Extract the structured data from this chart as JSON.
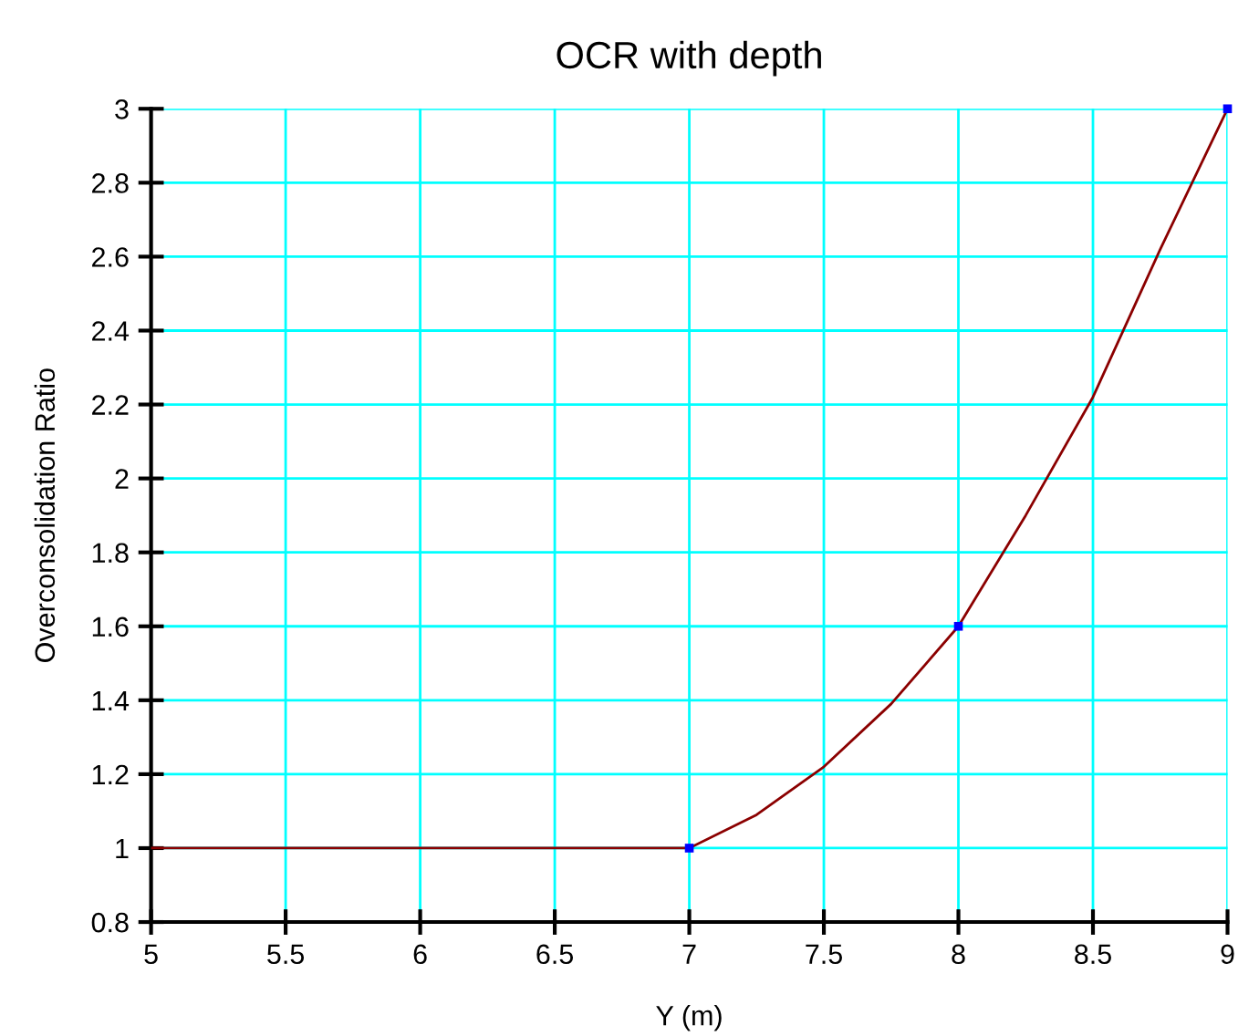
{
  "chart_data": {
    "type": "line",
    "title": "OCR with depth",
    "xlabel": "Y (m)",
    "ylabel": "Overconsolidation Ratio",
    "xlim": [
      5,
      9
    ],
    "xticks": [
      5,
      5.5,
      6,
      6.5,
      7,
      7.5,
      8,
      8.5,
      9
    ],
    "ylim": [
      0.8,
      3
    ],
    "yticks": [
      0.8,
      1,
      1.2,
      1.4,
      1.6,
      1.8,
      2,
      2.2,
      2.4,
      2.6,
      2.8,
      3
    ],
    "grid": true,
    "marker": "none",
    "series": [
      {
        "color": "#8b0000",
        "x": [
          5,
          7,
          7.25,
          7.5,
          7.75,
          8,
          8.25,
          8.5,
          8.75,
          9
        ],
        "values": [
          1,
          1,
          1.09,
          1.22,
          1.39,
          1.6,
          1.9,
          2.22,
          2.62,
          3
        ]
      },
      {
        "type": "scatter",
        "color": "#0000ff",
        "marker": "square",
        "x": [
          7,
          8,
          9
        ],
        "values": [
          1,
          1.6,
          3
        ]
      }
    ]
  }
}
